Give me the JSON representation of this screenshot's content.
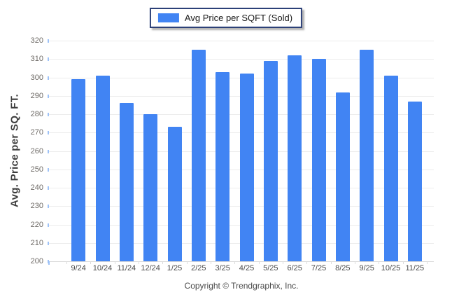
{
  "legend": {
    "label": "Avg Price per SQFT (Sold)"
  },
  "footer": {
    "copyright": "Copyright © Trendgraphix, Inc."
  },
  "colors": {
    "bar": "#4184F3",
    "legend_border": "#2c4077",
    "gridline": "#ececec",
    "y_axis_tick": "#9ec2f7",
    "baseline": "#d9d9d9"
  },
  "chart_data": {
    "type": "bar",
    "title": "",
    "categories": [
      "9/24",
      "10/24",
      "11/24",
      "12/24",
      "1/25",
      "2/25",
      "3/25",
      "4/25",
      "5/25",
      "6/25",
      "7/25",
      "8/25",
      "9/25",
      "10/25",
      "11/25"
    ],
    "series": [
      {
        "name": "Avg Price per SQFT (Sold)",
        "values": [
          299,
          301,
          286,
          280,
          273,
          315,
          303,
          302,
          309,
          312,
          310,
          292,
          315,
          301,
          287
        ]
      }
    ],
    "xlabel": "",
    "ylabel": "Avg. Price per SQ. FT.",
    "ylim": [
      200,
      320
    ],
    "ytick_interval": 10,
    "grid": true,
    "legend_position": "top-center",
    "bar_color": "#4184F3"
  }
}
